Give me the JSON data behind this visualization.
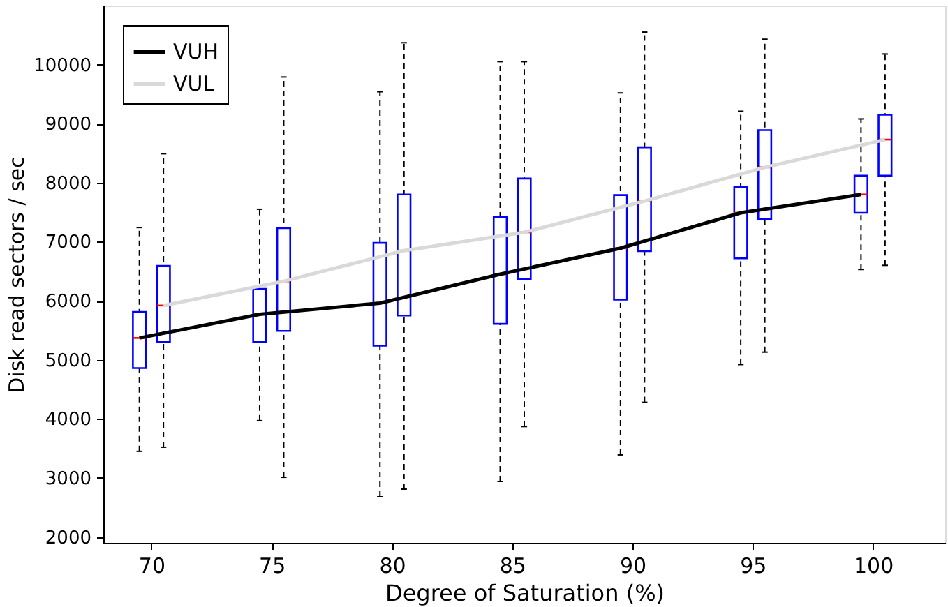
{
  "chart_data": {
    "type": "box",
    "xlabel": "Degree of Saturation (%)",
    "ylabel": "Disk read sectors / sec",
    "xlim": [
      68,
      103
    ],
    "ylim": [
      1900,
      11000
    ],
    "xticks": [
      70,
      75,
      80,
      85,
      90,
      95,
      100
    ],
    "yticks": [
      2000,
      3000,
      4000,
      5000,
      6000,
      7000,
      8000,
      9000,
      10000
    ],
    "grid": false,
    "legend": "top left",
    "series": [
      {
        "color": "#0000ff",
        "x": [
          69.5,
          74.5,
          79.5,
          84.5,
          89.5,
          94.5,
          99.5
        ],
        "boxes": [
          {
            "low": 3450,
            "q1": 4860,
            "median": 5370,
            "q3": 5810,
            "high": 7240
          },
          {
            "low": 3970,
            "q1": 5300,
            "median": 5770,
            "q3": 6200,
            "high": 7550
          },
          {
            "low": 2680,
            "q1": 5240,
            "median": 5960,
            "q3": 6980,
            "high": 9540
          },
          {
            "low": 2940,
            "q1": 5610,
            "median": 6450,
            "q3": 7420,
            "high": 10050
          },
          {
            "low": 3390,
            "q1": 6020,
            "median": 6890,
            "q3": 7790,
            "high": 9520
          },
          {
            "low": 4920,
            "q1": 6720,
            "median": 7490,
            "q3": 7930,
            "high": 9210
          },
          {
            "low": 6530,
            "q1": 7490,
            "median": 7800,
            "q3": 8120,
            "high": 9080
          }
        ]
      },
      {
        "color": "#0000ff",
        "x": [
          70.5,
          75.5,
          80.5,
          85.5,
          90.5,
          95.5,
          100.5
        ],
        "boxes": [
          {
            "low": 3520,
            "q1": 5300,
            "median": 5920,
            "q3": 6590,
            "high": 8490
          },
          {
            "low": 3010,
            "q1": 5490,
            "median": 6330,
            "q3": 7230,
            "high": 9790
          },
          {
            "low": 2810,
            "q1": 5750,
            "median": 6850,
            "q3": 7800,
            "high": 10370
          },
          {
            "low": 3870,
            "q1": 6370,
            "median": 7160,
            "q3": 8070,
            "high": 10050
          },
          {
            "low": 4280,
            "q1": 6840,
            "median": 7690,
            "q3": 8600,
            "high": 10550
          },
          {
            "low": 5130,
            "q1": 7380,
            "median": 8260,
            "q3": 8890,
            "high": 10430
          },
          {
            "low": 6600,
            "q1": 8120,
            "median": 8730,
            "q3": 9150,
            "high": 10180
          }
        ]
      },
      {
        "type": "line",
        "name": "VUH",
        "color": "#000000",
        "x": [
          69.5,
          74.5,
          79.5,
          84.5,
          89.5,
          94.5,
          99.5
        ],
        "values": [
          5370,
          5770,
          5960,
          6450,
          6890,
          7490,
          7800
        ]
      },
      {
        "type": "line",
        "name": "VUL",
        "color": "#d9d9d9",
        "x": [
          70.5,
          75.5,
          80.5,
          85.5,
          90.5,
          95.5,
          100.5
        ],
        "values": [
          5920,
          6330,
          6850,
          7160,
          7690,
          8260,
          8730
        ]
      }
    ]
  }
}
